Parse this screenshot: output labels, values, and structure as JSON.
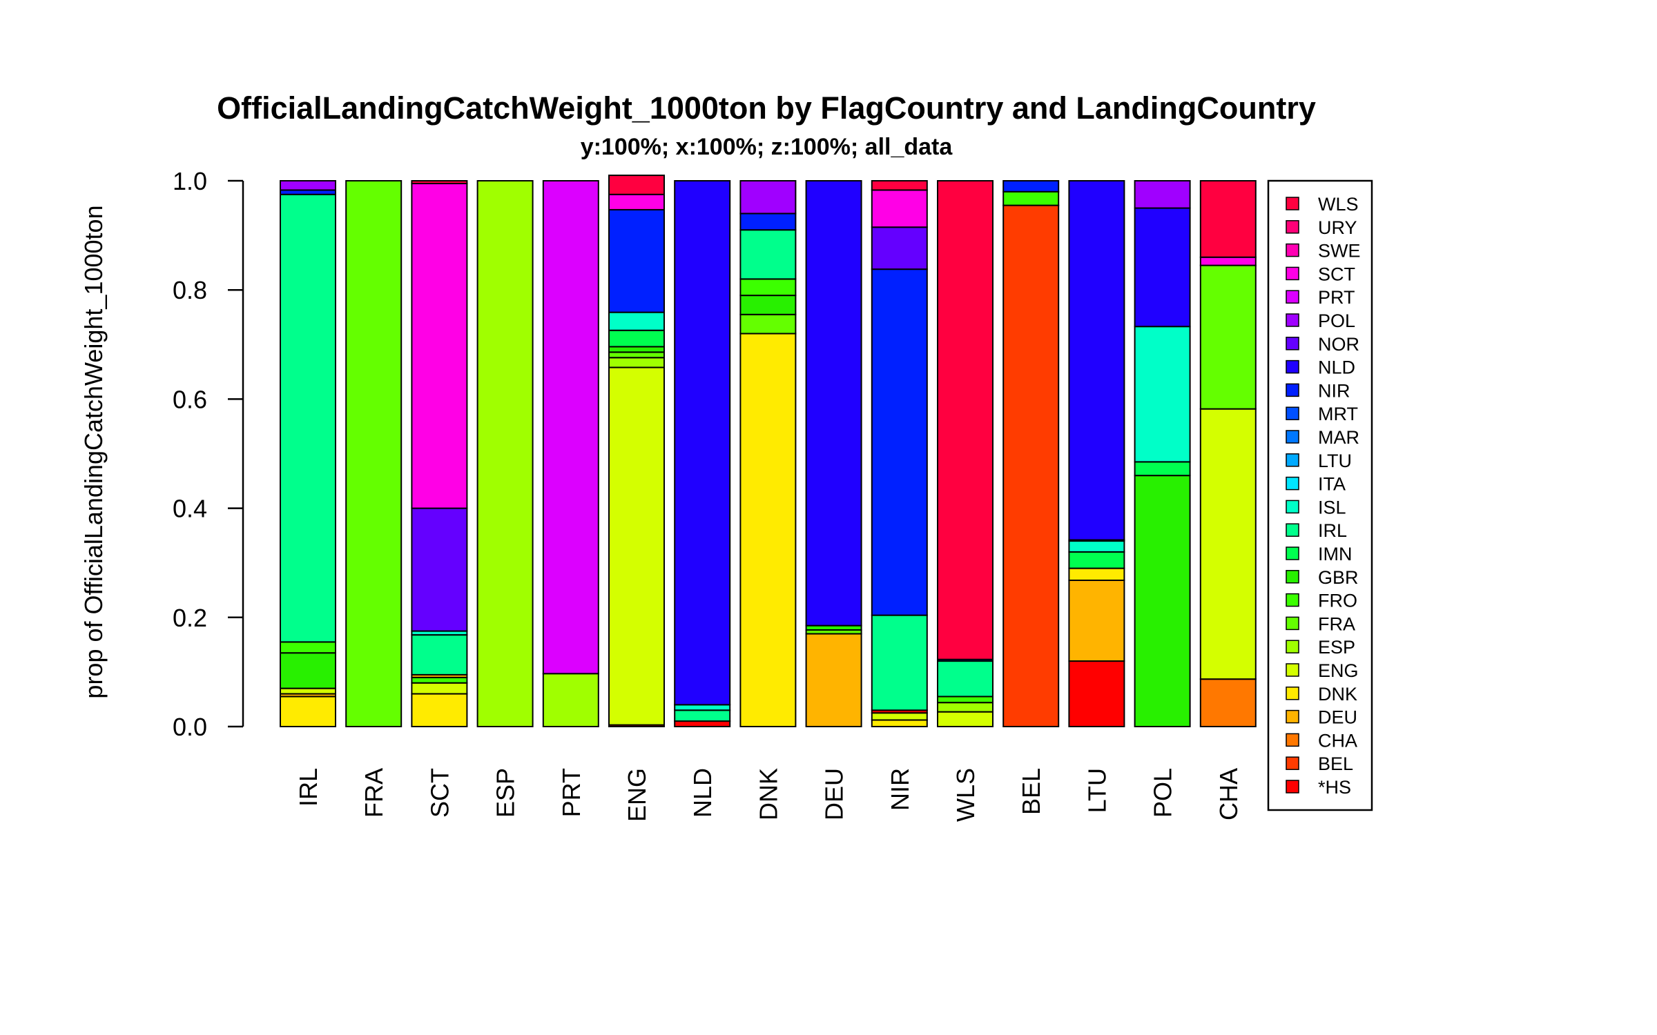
{
  "chart_data": {
    "type": "bar",
    "stacked": true,
    "title": "OfficialLandingCatchWeight_1000ton by FlagCountry and LandingCountry",
    "subtitle": "y:100%; x:100%; z:100%; all_data",
    "xlabel": "",
    "ylabel": "prop of OfficialLandingCatchWeight_1000ton",
    "ylim": [
      0,
      1
    ],
    "yticks": [
      "0.0",
      "0.2",
      "0.4",
      "0.6",
      "0.8",
      "1.0"
    ],
    "categories": [
      "IRL",
      "FRA",
      "SCT",
      "ESP",
      "PRT",
      "ENG",
      "NLD",
      "DNK",
      "DEU",
      "NIR",
      "WLS",
      "BEL",
      "LTU",
      "POL",
      "CHA"
    ],
    "legend_position": "right",
    "legend": [
      "WLS",
      "URY",
      "SWE",
      "SCT",
      "PRT",
      "POL",
      "NOR",
      "NLD",
      "NIR",
      "MRT",
      "MAR",
      "LTU",
      "ITA",
      "ISL",
      "IRL",
      "IMN",
      "GBR",
      "FRO",
      "FRA",
      "ESP",
      "ENG",
      "DNK",
      "DEU",
      "CHA",
      "BEL",
      "*HS"
    ],
    "series_colors": {
      "*HS": "#FF0000",
      "BEL": "#FF3C00",
      "CHA": "#FF7800",
      "DEU": "#FFB400",
      "DNK": "#FFEB00",
      "ENG": "#D4FF00",
      "ESP": "#A0FF00",
      "FRA": "#64FF00",
      "FRO": "#3CFF00",
      "GBR": "#28F000",
      "IMN": "#00FF50",
      "IRL": "#00FF8C",
      "ISL": "#00FFC8",
      "ITA": "#00E6FF",
      "LTU": "#00AAFF",
      "MAR": "#0078FF",
      "MRT": "#0050FF",
      "NIR": "#0020FF",
      "NLD": "#2000FF",
      "NOR": "#6400FF",
      "POL": "#A000FF",
      "PRT": "#DC00FF",
      "SCT": "#FF00E6",
      "SWE": "#FF00B4",
      "URY": "#FF0078",
      "WLS": "#FF0040"
    },
    "bars": [
      {
        "category": "IRL",
        "segments": [
          {
            "series": "DNK",
            "value": 0.055
          },
          {
            "series": "DEU",
            "value": 0.005
          },
          {
            "series": "ENG",
            "value": 0.01
          },
          {
            "series": "GBR",
            "value": 0.065
          },
          {
            "series": "FRO",
            "value": 0.02
          },
          {
            "series": "IRL",
            "value": 0.82
          },
          {
            "series": "NIR",
            "value": 0.008
          },
          {
            "series": "POL",
            "value": 0.017
          }
        ]
      },
      {
        "category": "FRA",
        "segments": [
          {
            "series": "FRA",
            "value": 1.0
          }
        ]
      },
      {
        "category": "SCT",
        "segments": [
          {
            "series": "DNK",
            "value": 0.06
          },
          {
            "series": "ENG",
            "value": 0.02
          },
          {
            "series": "FRO",
            "value": 0.01
          },
          {
            "series": "DEU",
            "value": 0.005
          },
          {
            "series": "IRL",
            "value": 0.073
          },
          {
            "series": "ISL",
            "value": 0.007
          },
          {
            "series": "NOR",
            "value": 0.225
          },
          {
            "series": "SCT",
            "value": 0.595
          },
          {
            "series": "WLS",
            "value": 0.005
          }
        ]
      },
      {
        "category": "ESP",
        "segments": [
          {
            "series": "ESP",
            "value": 1.0
          }
        ]
      },
      {
        "category": "PRT",
        "segments": [
          {
            "series": "ESP",
            "value": 0.097
          },
          {
            "series": "PRT",
            "value": 0.903
          }
        ]
      },
      {
        "category": "ENG",
        "segments": [
          {
            "series": "*HS",
            "value": 0.003
          },
          {
            "series": "ENG",
            "value": 0.655
          },
          {
            "series": "ESP",
            "value": 0.018
          },
          {
            "series": "FRA",
            "value": 0.01
          },
          {
            "series": "GBR",
            "value": 0.01
          },
          {
            "series": "IMN",
            "value": 0.03
          },
          {
            "series": "ISL",
            "value": 0.033
          },
          {
            "series": "NIR",
            "value": 0.188
          },
          {
            "series": "SCT",
            "value": 0.028
          },
          {
            "series": "WLS",
            "value": 0.035
          }
        ]
      },
      {
        "category": "NLD",
        "segments": [
          {
            "series": "*HS",
            "value": 0.01
          },
          {
            "series": "IRL",
            "value": 0.02
          },
          {
            "series": "ISL",
            "value": 0.01
          },
          {
            "series": "NLD",
            "value": 0.96
          }
        ]
      },
      {
        "category": "DNK",
        "segments": [
          {
            "series": "DNK",
            "value": 0.72
          },
          {
            "series": "FRA",
            "value": 0.035
          },
          {
            "series": "GBR",
            "value": 0.035
          },
          {
            "series": "FRO",
            "value": 0.03
          },
          {
            "series": "IRL",
            "value": 0.09
          },
          {
            "series": "NIR",
            "value": 0.03
          },
          {
            "series": "POL",
            "value": 0.06
          }
        ]
      },
      {
        "category": "DEU",
        "segments": [
          {
            "series": "DEU",
            "value": 0.17
          },
          {
            "series": "FRA",
            "value": 0.007
          },
          {
            "series": "GBR",
            "value": 0.008
          },
          {
            "series": "NLD",
            "value": 0.815
          }
        ]
      },
      {
        "category": "NIR",
        "segments": [
          {
            "series": "DNK",
            "value": 0.012
          },
          {
            "series": "ENG",
            "value": 0.013
          },
          {
            "series": "*HS",
            "value": 0.005
          },
          {
            "series": "IRL",
            "value": 0.174
          },
          {
            "series": "NIR",
            "value": 0.634
          },
          {
            "series": "NOR",
            "value": 0.077
          },
          {
            "series": "SCT",
            "value": 0.068
          },
          {
            "series": "WLS",
            "value": 0.017
          }
        ]
      },
      {
        "category": "WLS",
        "segments": [
          {
            "series": "ENG",
            "value": 0.027
          },
          {
            "series": "ESP",
            "value": 0.017
          },
          {
            "series": "FRO",
            "value": 0.011
          },
          {
            "series": "IRL",
            "value": 0.065
          },
          {
            "series": "NIR",
            "value": 0.003
          },
          {
            "series": "WLS",
            "value": 0.877
          }
        ]
      },
      {
        "category": "BEL",
        "segments": [
          {
            "series": "BEL",
            "value": 0.955
          },
          {
            "series": "FRO",
            "value": 0.025
          },
          {
            "series": "NIR",
            "value": 0.02
          }
        ]
      },
      {
        "category": "LTU",
        "segments": [
          {
            "series": "*HS",
            "value": 0.12
          },
          {
            "series": "DEU",
            "value": 0.148
          },
          {
            "series": "DNK",
            "value": 0.022
          },
          {
            "series": "IMN",
            "value": 0.03
          },
          {
            "series": "ISL",
            "value": 0.02
          },
          {
            "series": "LTU",
            "value": 0.002
          },
          {
            "series": "MAR",
            "value": 0.0
          },
          {
            "series": "ITA",
            "value": 0.0
          },
          {
            "series": "NLD",
            "value": 0.658
          }
        ]
      },
      {
        "category": "POL",
        "segments": [
          {
            "series": "GBR",
            "value": 0.46
          },
          {
            "series": "IMN",
            "value": 0.025
          },
          {
            "series": "ISL",
            "value": 0.248
          },
          {
            "series": "NLD",
            "value": 0.217
          },
          {
            "series": "POL",
            "value": 0.05
          }
        ]
      },
      {
        "category": "CHA",
        "segments": [
          {
            "series": "CHA",
            "value": 0.087
          },
          {
            "series": "ENG",
            "value": 0.495
          },
          {
            "series": "FRA",
            "value": 0.263
          },
          {
            "series": "SCT",
            "value": 0.015
          },
          {
            "series": "WLS",
            "value": 0.14
          }
        ]
      }
    ]
  }
}
